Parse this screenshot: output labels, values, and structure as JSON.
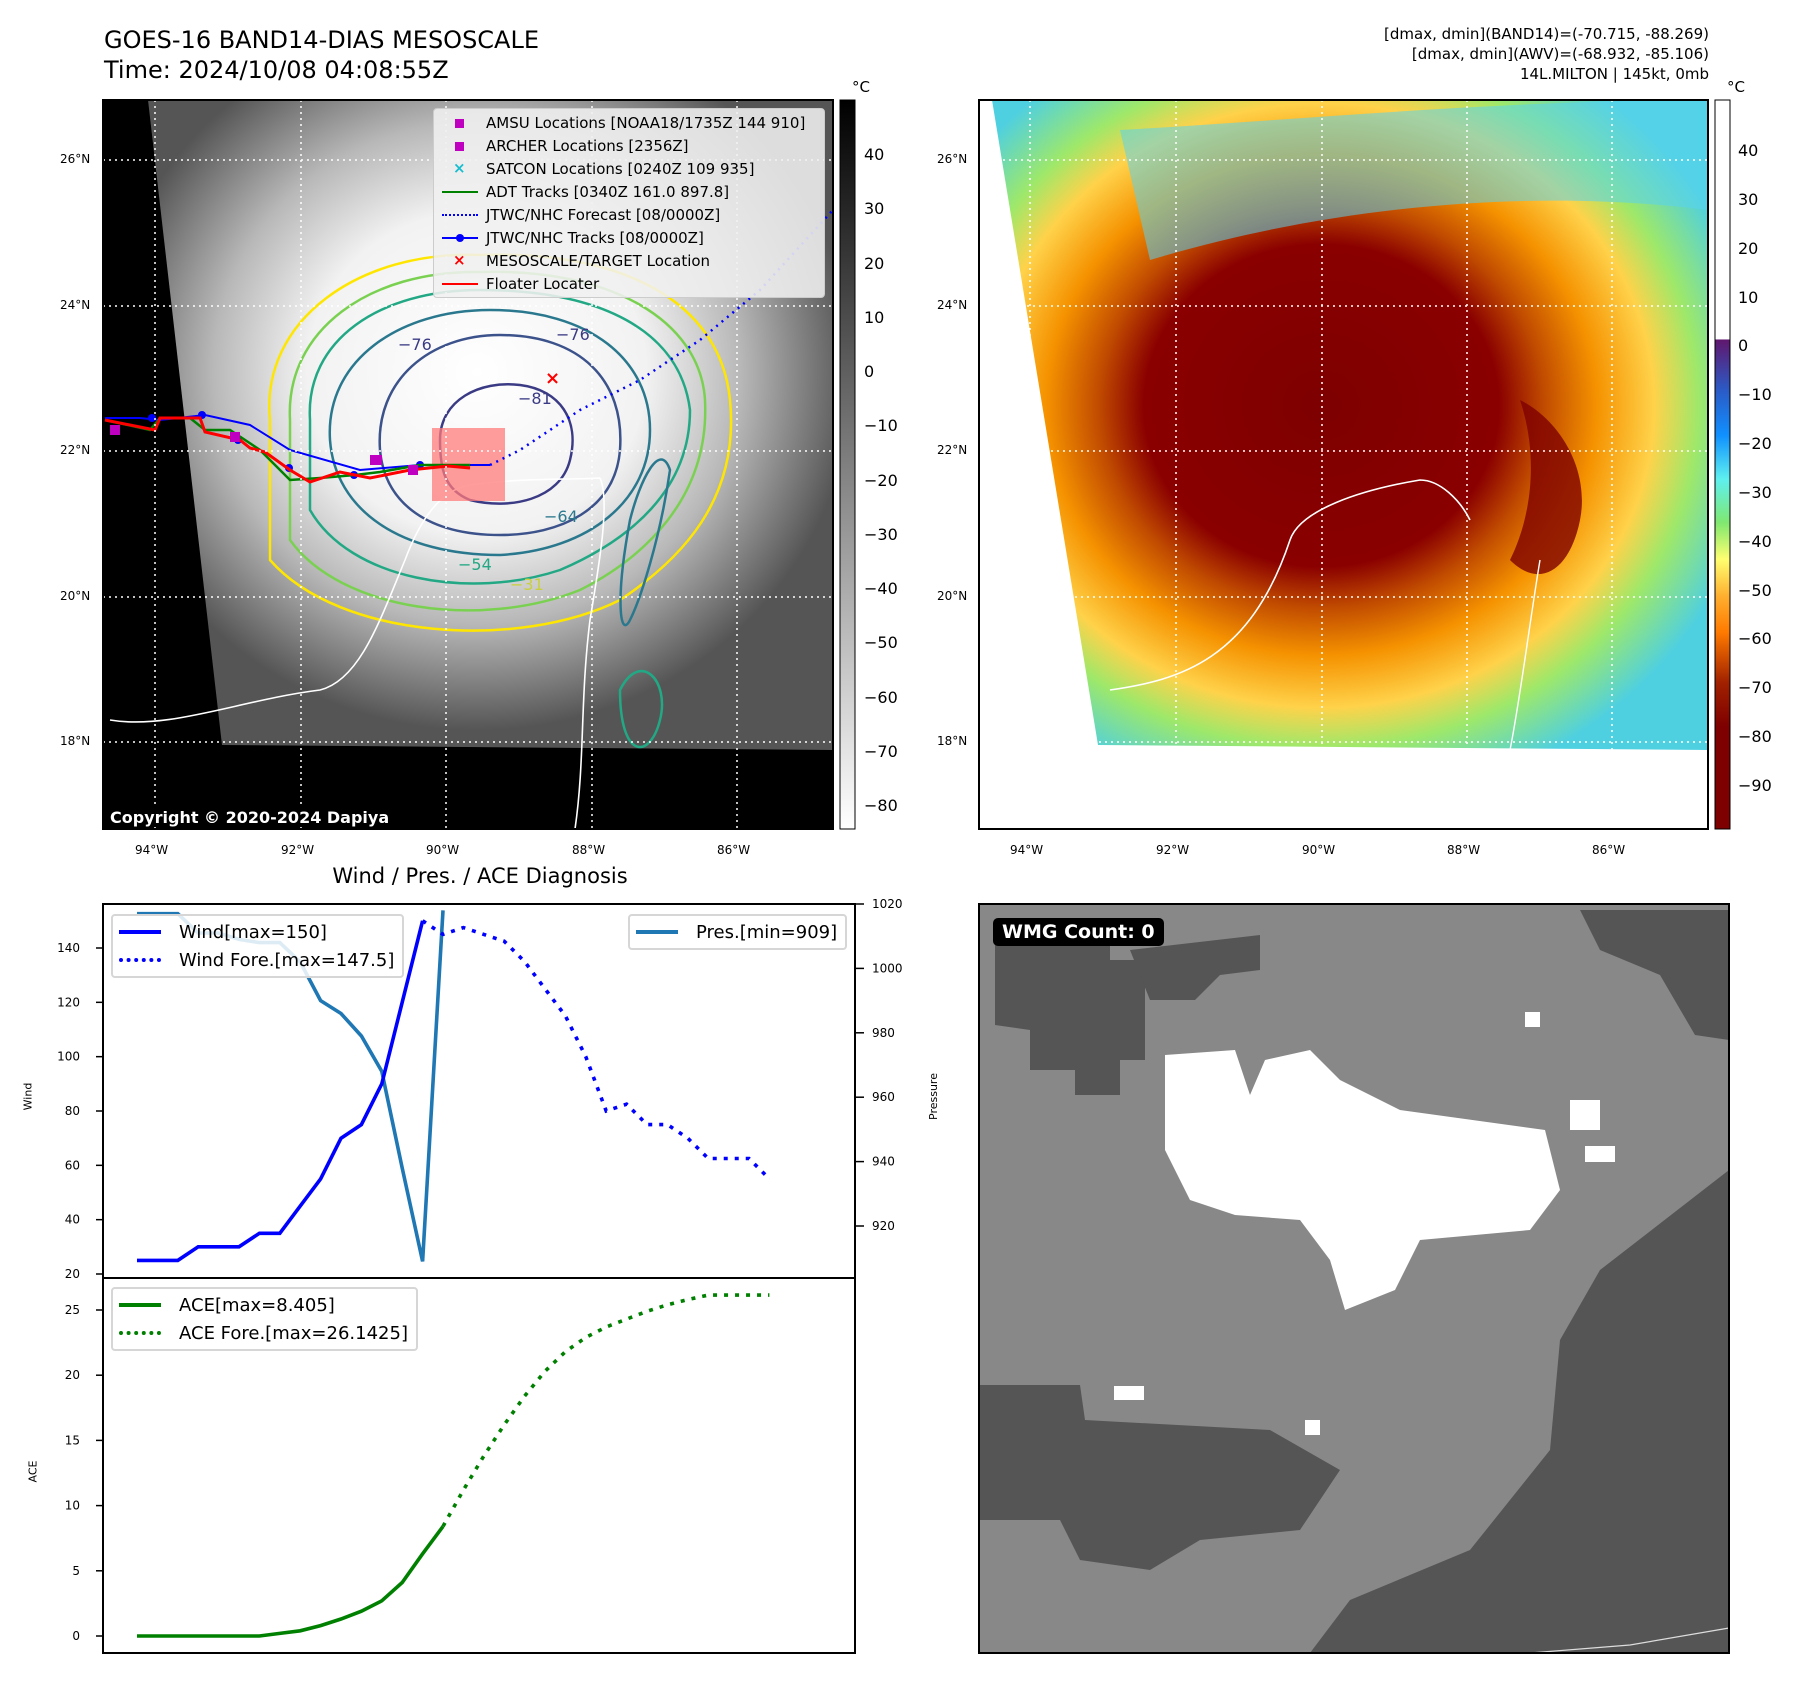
{
  "header": {
    "title": "GOES-16 BAND14-DIAS MESOSCALE",
    "time": "Time: 2024/10/08 04:08:55Z",
    "stats": [
      "[dmax, dmin](BAND14)=(-70.715, -88.269)",
      "[dmax, dmin](AWV)=(-68.932, -85.106)",
      "14L.MILTON | 145kt, 0mb"
    ]
  },
  "map_left": {
    "colorbar_unit": "°C",
    "colorbar_ticks": [
      "40",
      "30",
      "20",
      "10",
      "0",
      "−10",
      "−20",
      "−30",
      "−40",
      "−50",
      "−60",
      "−70",
      "−80"
    ],
    "lat_ticks": [
      "26°N",
      "24°N",
      "22°N",
      "20°N",
      "18°N"
    ],
    "lon_ticks": [
      "94°W",
      "92°W",
      "90°W",
      "88°W",
      "86°W"
    ],
    "contour_labels": [
      "−76",
      "−76",
      "−81",
      "−64",
      "−54",
      "−31"
    ],
    "copyright": "Copyright © 2020-2024 Dapiya",
    "legend": [
      {
        "label": "AMSU Locations [NOAA18/1735Z 144 910]",
        "symbol": "square",
        "color": "#c000c0"
      },
      {
        "label": "ARCHER Locations [2356Z]",
        "symbol": "square",
        "color": "#c000c0"
      },
      {
        "label": "SATCON Locations [0240Z 109 935]",
        "symbol": "x",
        "color": "#17becf"
      },
      {
        "label": "ADT Tracks [0340Z 161.0 897.8]",
        "symbol": "line",
        "color": "#008000"
      },
      {
        "label": "JTWC/NHC Forecast [08/0000Z]",
        "symbol": "dotted",
        "color": "#0000ff"
      },
      {
        "label": "JTWC/NHC Tracks [08/0000Z]",
        "symbol": "line-dot",
        "color": "#0000ff"
      },
      {
        "label": "MESOSCALE/TARGET Location",
        "symbol": "x",
        "color": "#ff0000"
      },
      {
        "label": "Floater Locater",
        "symbol": "line",
        "color": "#ff0000"
      }
    ]
  },
  "map_right": {
    "colorbar_unit": "°C",
    "colorbar_ticks": [
      "40",
      "30",
      "20",
      "10",
      "0",
      "−10",
      "−20",
      "−30",
      "−40",
      "−50",
      "−60",
      "−70",
      "−80",
      "−90"
    ],
    "lat_ticks": [
      "26°N",
      "24°N",
      "22°N",
      "20°N",
      "18°N"
    ],
    "lon_ticks": [
      "94°W",
      "92°W",
      "90°W",
      "88°W",
      "86°W"
    ]
  },
  "wmg": {
    "badge": "WMG Count: 0"
  },
  "chart_data": [
    {
      "type": "line",
      "title": "Wind / Pres. / ACE Diagnosis",
      "ylabel": "Wind",
      "y2label": "Pressure",
      "ylim": [
        20,
        155
      ],
      "y2lim": [
        904,
        1020
      ],
      "yticks": [
        "20",
        "40",
        "60",
        "80",
        "100",
        "120",
        "140"
      ],
      "y2ticks": [
        "920",
        "940",
        "960",
        "980",
        "1000",
        "1020"
      ],
      "series": [
        {
          "name": "Wind[max=150]",
          "style": "solid",
          "color": "#0000ff",
          "x": [
            0,
            1,
            2,
            3,
            4,
            5,
            6,
            7,
            8,
            9,
            10,
            11,
            12,
            13,
            14
          ],
          "values": [
            25,
            25,
            25,
            30,
            30,
            30,
            35,
            35,
            45,
            55,
            70,
            75,
            90,
            120,
            150
          ]
        },
        {
          "name": "Wind Fore.[max=147.5]",
          "style": "dotted",
          "color": "#0000ff",
          "x": [
            14,
            15,
            16,
            17,
            18,
            19,
            20,
            21,
            22,
            23,
            24,
            25,
            26,
            27,
            28,
            29,
            30,
            31
          ],
          "values": [
            150,
            145,
            147.5,
            145,
            142.5,
            135,
            125,
            115,
            100,
            80,
            82.5,
            75,
            75,
            70,
            62.5,
            62.5,
            62.5,
            55
          ]
        },
        {
          "name": "Pres.[min=909]",
          "style": "solid",
          "color": "#1f77b4",
          "axis": "right",
          "x": [
            0,
            1,
            2,
            3,
            4,
            5,
            6,
            7,
            8,
            9,
            10,
            11,
            12,
            13,
            14,
            15
          ],
          "values": [
            1017,
            1017,
            1017,
            1011,
            1011,
            1009,
            1008,
            1008,
            1002,
            990,
            986,
            979,
            968,
            938,
            909,
            1018
          ]
        }
      ]
    },
    {
      "type": "line",
      "ylabel": "ACE",
      "ylim": [
        -1.3,
        27.3
      ],
      "yticks": [
        "0",
        "5",
        "10",
        "15",
        "20",
        "25"
      ],
      "series": [
        {
          "name": "ACE[max=8.405]",
          "style": "solid",
          "color": "#008000",
          "x": [
            0,
            1,
            2,
            3,
            4,
            5,
            6,
            7,
            8,
            9,
            10,
            11,
            12,
            13,
            14,
            15
          ],
          "values": [
            0,
            0,
            0,
            0,
            0,
            0,
            0,
            0.2,
            0.4,
            0.8,
            1.3,
            1.9,
            2.7,
            4.1,
            6.3,
            8.405
          ]
        },
        {
          "name": "ACE Fore.[max=26.1425]",
          "style": "dotted",
          "color": "#008000",
          "x": [
            15,
            16,
            17,
            18,
            19,
            20,
            21,
            22,
            23,
            24,
            25,
            26,
            27,
            28,
            29,
            30,
            31
          ],
          "values": [
            8.405,
            11.2,
            13.8,
            16.2,
            18.4,
            20.3,
            21.8,
            22.9,
            23.7,
            24.3,
            24.9,
            25.4,
            25.8,
            26.1425,
            26.1425,
            26.1425,
            26.1425
          ]
        }
      ]
    }
  ]
}
